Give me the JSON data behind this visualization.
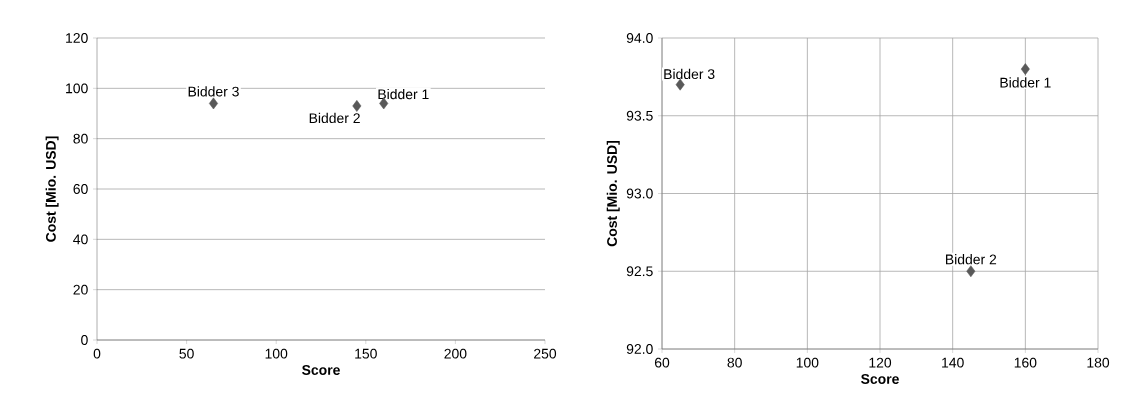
{
  "chart_data": [
    {
      "type": "scatter",
      "xlabel": "Score",
      "ylabel": "Cost [Mio. USD]",
      "marker": "diamond",
      "grid": "y",
      "series": [
        {
          "color": "#595959",
          "x": [
            160,
            145,
            65
          ],
          "values": [
            94,
            93,
            94
          ]
        }
      ],
      "xlim": [
        0,
        250
      ],
      "xticks": [
        0,
        50,
        100,
        150,
        200,
        250
      ],
      "ylim": [
        0,
        120
      ],
      "yticks": [
        0,
        20,
        40,
        60,
        80,
        100,
        120
      ],
      "annotations": [
        {
          "text": "Bidder 1",
          "x": 160,
          "y": 94
        },
        {
          "text": "Bidder 2",
          "x": 145,
          "y": 93
        },
        {
          "text": "Bidder 3",
          "x": 65,
          "y": 94
        }
      ]
    },
    {
      "type": "scatter",
      "xlabel": "Score",
      "ylabel": "Cost [Mio. USD]",
      "marker": "diamond",
      "grid": true,
      "series": [
        {
          "color": "#595959",
          "x": [
            160,
            145,
            65
          ],
          "values": [
            93.8,
            92.5,
            93.7
          ]
        }
      ],
      "xlim": [
        60,
        180
      ],
      "xticks": [
        60,
        80,
        100,
        120,
        140,
        160,
        180
      ],
      "ylim": [
        92,
        94
      ],
      "yticks": [
        {
          "value": 92,
          "label": "92.0"
        },
        {
          "value": 92.5,
          "label": "92.5"
        },
        {
          "value": 93,
          "label": "93.0"
        },
        {
          "value": 93.5,
          "label": "93.5"
        },
        {
          "value": 94,
          "label": "94.0"
        }
      ],
      "annotations": [
        {
          "text": "Bidder 1",
          "x": 160,
          "y": 93.8
        },
        {
          "text": "Bidder 2",
          "x": 145,
          "y": 92.5
        },
        {
          "text": "Bidder 3",
          "x": 65,
          "y": 93.7
        }
      ]
    }
  ]
}
